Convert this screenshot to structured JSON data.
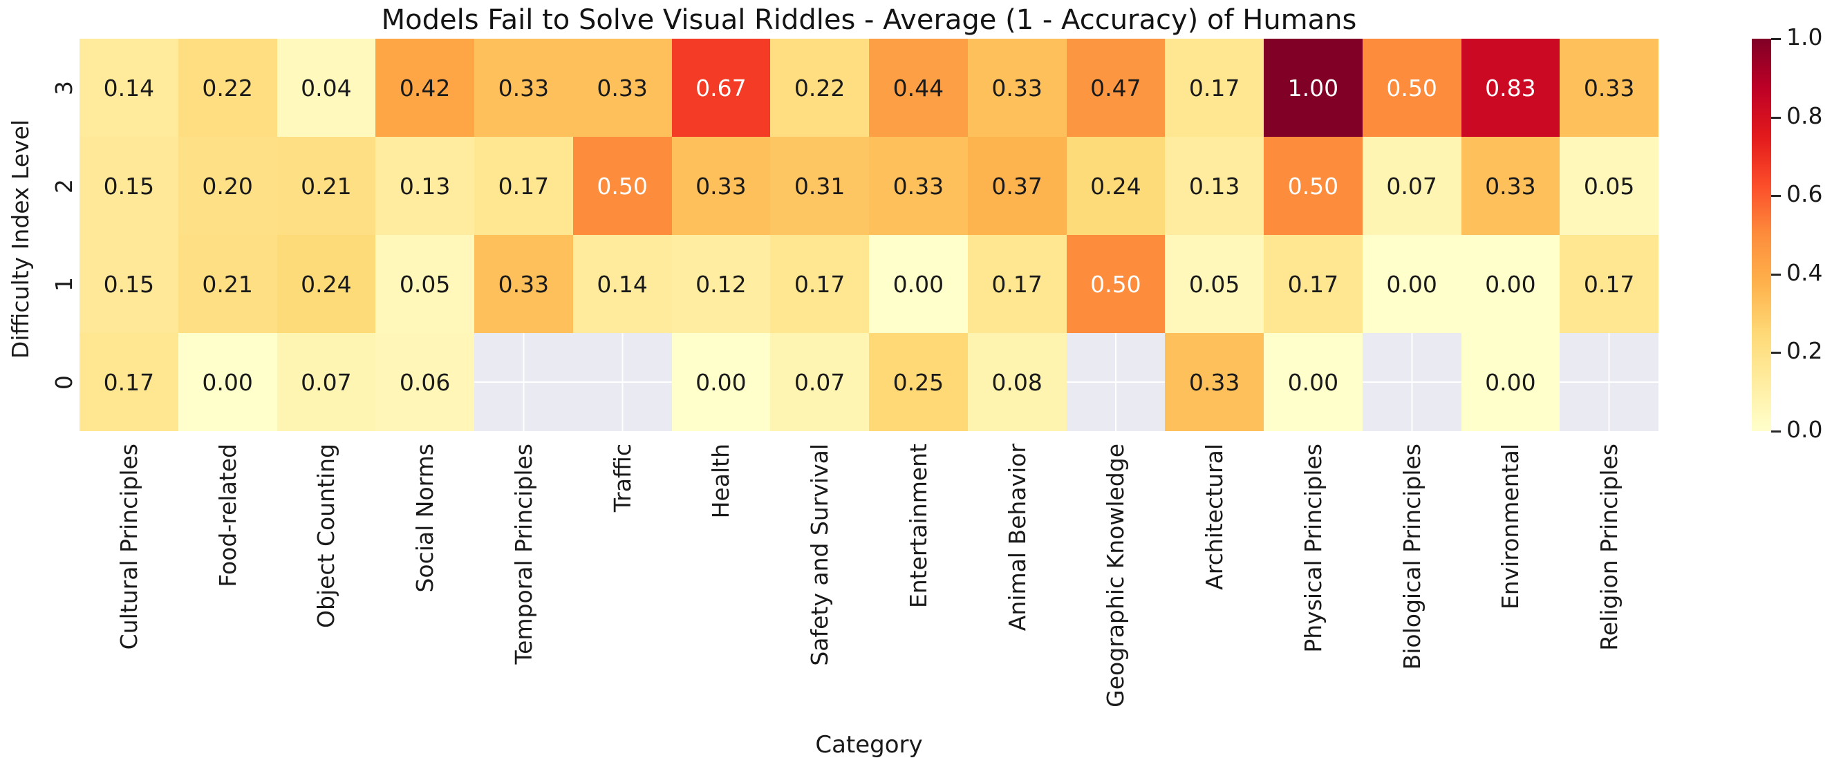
{
  "chart_data": {
    "type": "heatmap",
    "title": "Models Fail to Solve Visual Riddles - Average (1 - Accuracy) of Humans",
    "xlabel": "Category",
    "ylabel": "Difficulty Index Level",
    "categories": [
      "Cultural Principles",
      "Food-related",
      "Object Counting",
      "Social Norms",
      "Temporal Principles",
      "Traffic",
      "Health",
      "Safety and Survival",
      "Entertainment",
      "Animal Behavior",
      "Geographic Knowledge",
      "Architectural",
      "Physical Principles",
      "Biological Principles",
      "Environmental",
      "Religion Principles"
    ],
    "row_labels": [
      "3",
      "2",
      "1",
      "0"
    ],
    "matrix": [
      [
        0.14,
        0.22,
        0.04,
        0.42,
        0.33,
        0.33,
        0.67,
        0.22,
        0.44,
        0.33,
        0.47,
        0.17,
        1.0,
        0.5,
        0.83,
        0.33
      ],
      [
        0.15,
        0.2,
        0.21,
        0.13,
        0.17,
        0.5,
        0.33,
        0.31,
        0.33,
        0.37,
        0.24,
        0.13,
        0.5,
        0.07,
        0.33,
        0.05
      ],
      [
        0.15,
        0.21,
        0.24,
        0.05,
        0.33,
        0.14,
        0.12,
        0.17,
        0.0,
        0.17,
        0.5,
        0.05,
        0.17,
        0.0,
        0.0,
        0.17
      ],
      [
        0.17,
        0.0,
        0.07,
        0.06,
        null,
        null,
        0.0,
        0.07,
        0.25,
        0.08,
        null,
        0.33,
        0.0,
        null,
        0.0,
        null
      ]
    ],
    "vmin": 0.0,
    "vmax": 1.0,
    "colormap_name": "YlOrRd",
    "colormap_stops": [
      "#ffffcc",
      "#ffeda0",
      "#fed976",
      "#feb24c",
      "#fd8d3c",
      "#fc4e2a",
      "#e31a1c",
      "#bd0026",
      "#800026"
    ],
    "nan_color": "#eaeaf2",
    "text_color_dark": "#1a1a1a",
    "text_color_light": "#ffffff",
    "colorbar": {
      "position": "right",
      "ticks": [
        {
          "value": 1.0,
          "label": "1.0"
        },
        {
          "value": 0.8,
          "label": "0.8"
        },
        {
          "value": 0.6,
          "label": "0.6"
        },
        {
          "value": 0.4,
          "label": "0.4"
        },
        {
          "value": 0.2,
          "label": "0.2"
        },
        {
          "value": 0.0,
          "label": "0.0"
        }
      ]
    },
    "grid": false,
    "legend_position": "right-colorbar"
  }
}
